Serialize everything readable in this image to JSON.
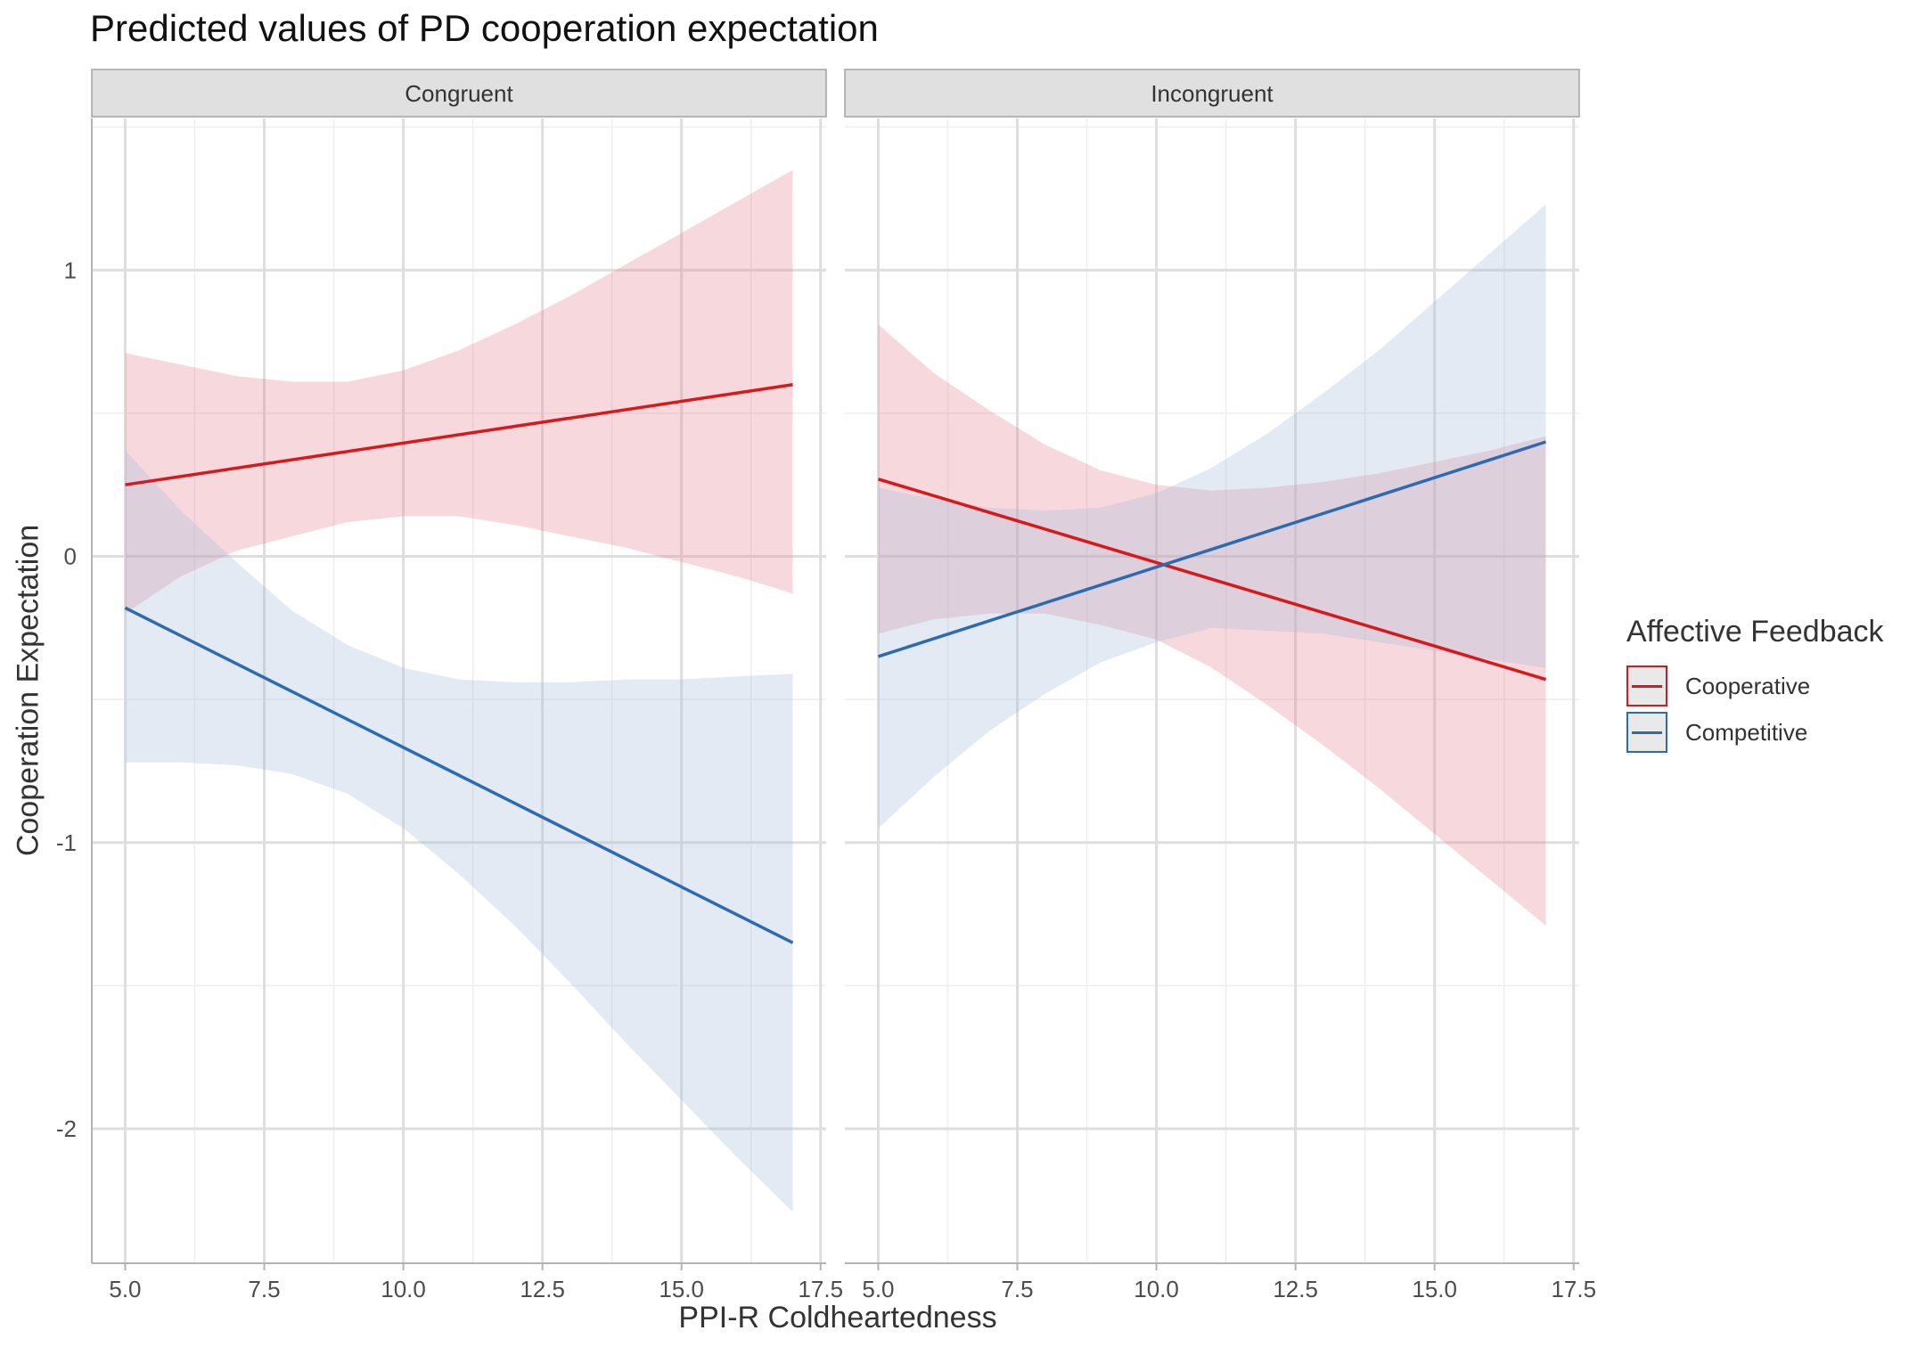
{
  "chart_data": {
    "type": "line",
    "title": "Predicted values of PD cooperation expectation",
    "xlabel": "PPI-R Coldheartedness",
    "ylabel": "Cooperation Expectation",
    "xlim": [
      4.4,
      17.6
    ],
    "ylim": [
      -2.47,
      1.53
    ],
    "x_ticks": [
      "5.0",
      "7.5",
      "10.0",
      "12.5",
      "15.0",
      "17.5"
    ],
    "x_tick_values": [
      5,
      7.5,
      10,
      12.5,
      15,
      17.5
    ],
    "y_ticks": [
      "-2",
      "-1",
      "0",
      "1"
    ],
    "y_tick_values": [
      -2,
      -1,
      0,
      1
    ],
    "grid": true,
    "legend": {
      "title": "Affective Feedback",
      "position": "right",
      "items": [
        "Cooperative",
        "Competitive"
      ]
    },
    "colors": {
      "Cooperative": "#d7191c",
      "Competitive": "#2c6bb0",
      "Cooperative_band": "#e78593",
      "Competitive_band": "#a8bdd9"
    },
    "panels": [
      {
        "label": "Congruent",
        "series": [
          {
            "name": "Cooperative",
            "line": [
              [
                5,
                0.25
              ],
              [
                17,
                0.6
              ]
            ],
            "band": {
              "x": [
                5,
                6,
                7,
                8,
                9,
                10,
                11,
                12,
                13,
                14,
                15,
                16,
                17
              ],
              "upper": [
                0.71,
                0.67,
                0.63,
                0.61,
                0.61,
                0.65,
                0.72,
                0.81,
                0.91,
                1.02,
                1.13,
                1.24,
                1.35
              ],
              "lower": [
                -0.2,
                -0.07,
                0.02,
                0.07,
                0.12,
                0.14,
                0.14,
                0.11,
                0.07,
                0.03,
                -0.02,
                -0.07,
                -0.13
              ]
            }
          },
          {
            "name": "Competitive",
            "line": [
              [
                5,
                -0.18
              ],
              [
                17,
                -1.35
              ]
            ],
            "band": {
              "x": [
                5,
                6,
                7,
                8,
                9,
                10,
                11,
                12,
                13,
                14,
                15,
                16,
                17
              ],
              "upper": [
                0.37,
                0.16,
                -0.02,
                -0.19,
                -0.31,
                -0.39,
                -0.43,
                -0.44,
                -0.44,
                -0.43,
                -0.43,
                -0.42,
                -0.41
              ],
              "lower": [
                -0.72,
                -0.72,
                -0.73,
                -0.76,
                -0.83,
                -0.95,
                -1.11,
                -1.29,
                -1.49,
                -1.7,
                -1.9,
                -2.1,
                -2.29
              ]
            }
          }
        ]
      },
      {
        "label": "Incongruent",
        "series": [
          {
            "name": "Cooperative",
            "line": [
              [
                5,
                0.27
              ],
              [
                17,
                -0.43
              ]
            ],
            "band": {
              "x": [
                5,
                6,
                7,
                8,
                9,
                10,
                11,
                12,
                13,
                14,
                15,
                16,
                17
              ],
              "upper": [
                0.81,
                0.64,
                0.51,
                0.39,
                0.3,
                0.25,
                0.23,
                0.24,
                0.26,
                0.29,
                0.33,
                0.37,
                0.42
              ],
              "lower": [
                -0.27,
                -0.22,
                -0.2,
                -0.2,
                -0.24,
                -0.29,
                -0.39,
                -0.52,
                -0.66,
                -0.81,
                -0.97,
                -1.13,
                -1.29
              ]
            }
          },
          {
            "name": "Competitive",
            "line": [
              [
                5,
                -0.35
              ],
              [
                17,
                0.4
              ]
            ],
            "band": {
              "x": [
                5,
                6,
                7,
                8,
                9,
                10,
                11,
                12,
                13,
                14,
                15,
                16,
                17
              ],
              "upper": [
                0.24,
                0.2,
                0.17,
                0.16,
                0.17,
                0.22,
                0.31,
                0.43,
                0.57,
                0.72,
                0.89,
                1.06,
                1.23
              ],
              "lower": [
                -0.95,
                -0.77,
                -0.61,
                -0.48,
                -0.37,
                -0.3,
                -0.25,
                -0.26,
                -0.27,
                -0.3,
                -0.33,
                -0.36,
                -0.39
              ]
            }
          }
        ]
      }
    ]
  }
}
